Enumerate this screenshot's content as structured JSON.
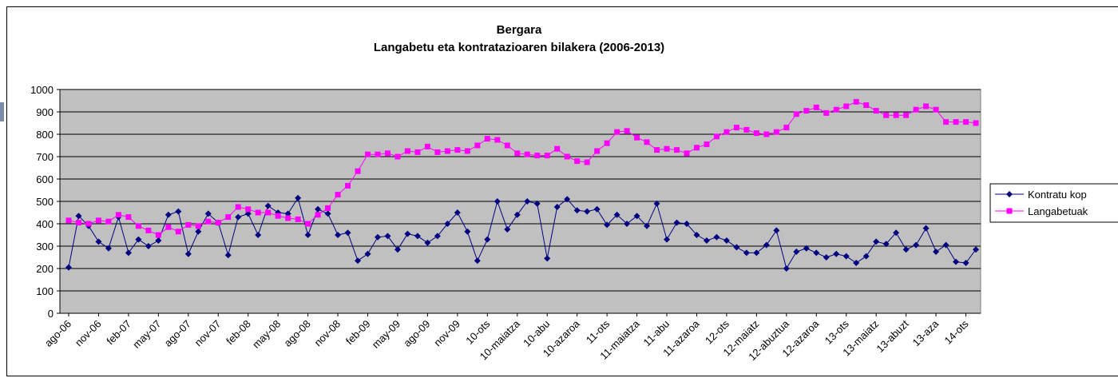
{
  "chart_data": {
    "type": "line",
    "title": "Bergara",
    "subtitle": "Langabetu eta kontratazioaren bilakera (2006-2013)",
    "categories": [
      "ago-06",
      null,
      null,
      "nov-06",
      null,
      null,
      "feb-07",
      null,
      null,
      "may-07",
      null,
      null,
      "ago-07",
      null,
      null,
      "nov-07",
      null,
      null,
      "feb-08",
      null,
      null,
      "may-08",
      null,
      null,
      "ago-08",
      null,
      null,
      "nov-08",
      null,
      null,
      "feb-09",
      null,
      null,
      "may-09",
      null,
      null,
      "ago-09",
      null,
      null,
      "nov-09",
      null,
      null,
      "10-ots",
      null,
      null,
      "10-maiatza",
      null,
      null,
      "10-abu",
      null,
      null,
      "10-azaroa",
      null,
      null,
      "11-ots",
      null,
      null,
      "11-maiatza",
      null,
      null,
      "11-abu",
      null,
      null,
      "11-azaroa",
      null,
      null,
      "12-ots",
      null,
      null,
      "12-maiatz",
      null,
      null,
      "12-abuztua",
      null,
      null,
      "12-azaroa",
      null,
      null,
      "13-ots",
      null,
      null,
      "13-maiatz",
      null,
      null,
      "13-abuzt",
      null,
      null,
      "13-aza",
      null,
      null,
      "14-ots",
      null
    ],
    "series": [
      {
        "name": "Kontratu kop",
        "color": "#000080",
        "marker": "diamond",
        "values": [
          205,
          435,
          390,
          320,
          290,
          430,
          270,
          330,
          300,
          325,
          440,
          455,
          265,
          365,
          445,
          405,
          260,
          430,
          445,
          350,
          480,
          450,
          445,
          515,
          350,
          465,
          445,
          350,
          360,
          235,
          265,
          340,
          345,
          285,
          355,
          345,
          315,
          345,
          400,
          450,
          365,
          235,
          330,
          500,
          375,
          440,
          500,
          490,
          245,
          475,
          510,
          460,
          455,
          465,
          395,
          440,
          400,
          435,
          390,
          490,
          330,
          405,
          400,
          350,
          325,
          340,
          325,
          295,
          270,
          270,
          305,
          370,
          200,
          275,
          290,
          270,
          250,
          265,
          255,
          225,
          255,
          320,
          310,
          360,
          285,
          305,
          380,
          275,
          305,
          230,
          225,
          285
        ]
      },
      {
        "name": "Langabetuak",
        "color": "#ff00ff",
        "marker": "square",
        "values": [
          415,
          405,
          400,
          415,
          410,
          440,
          430,
          390,
          370,
          350,
          385,
          365,
          395,
          390,
          410,
          405,
          430,
          475,
          465,
          450,
          450,
          435,
          425,
          420,
          400,
          440,
          470,
          530,
          570,
          635,
          710,
          710,
          715,
          700,
          725,
          720,
          745,
          720,
          725,
          730,
          725,
          750,
          780,
          775,
          750,
          715,
          710,
          705,
          705,
          735,
          700,
          680,
          675,
          725,
          760,
          810,
          815,
          785,
          765,
          730,
          735,
          730,
          715,
          740,
          755,
          790,
          810,
          830,
          820,
          805,
          800,
          810,
          830,
          890,
          905,
          920,
          895,
          910,
          925,
          945,
          930,
          905,
          885,
          885,
          885,
          910,
          925,
          910,
          855,
          855,
          855,
          850
        ]
      }
    ],
    "ylim": [
      0,
      1000
    ],
    "yticks": [
      0,
      100,
      200,
      300,
      400,
      500,
      600,
      700,
      800,
      900,
      1000
    ],
    "grid": true,
    "legend": "right"
  }
}
